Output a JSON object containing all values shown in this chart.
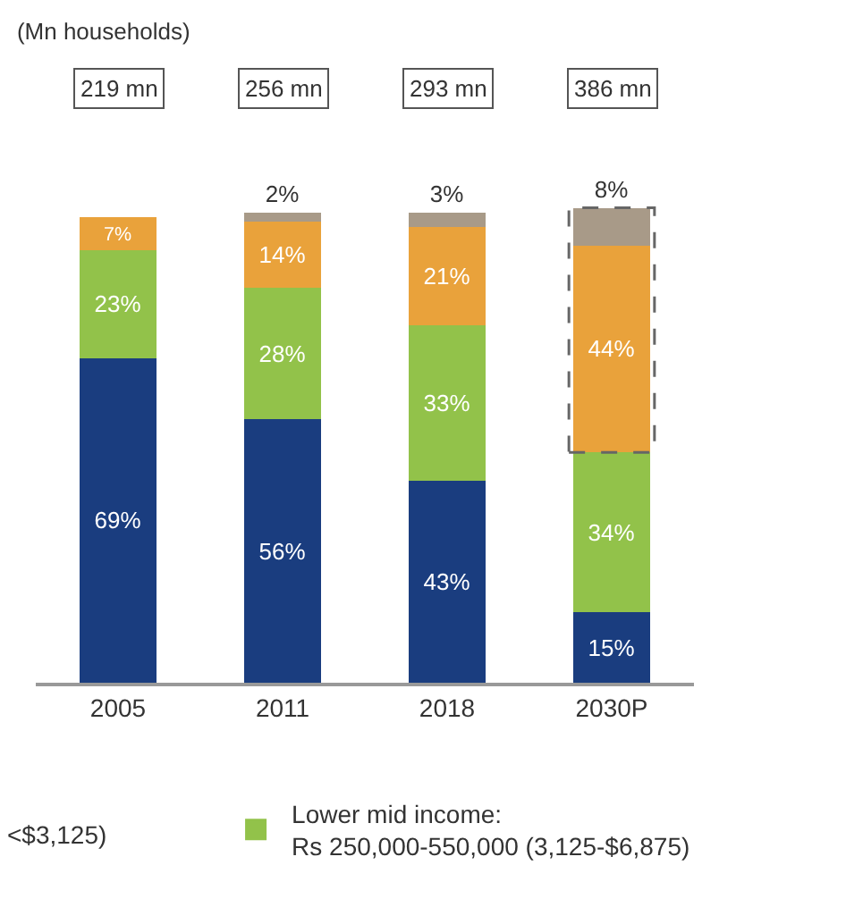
{
  "chart_data": {
    "type": "bar",
    "title": "(Mn households)",
    "stacked": true,
    "categories": [
      "2005",
      "2011",
      "2018",
      "2030P"
    ],
    "series": [
      {
        "color": "#1a3d7f",
        "values": [
          69,
          56,
          43,
          15
        ],
        "value_labels": [
          "69%",
          "56%",
          "43%",
          "15%"
        ]
      },
      {
        "name": "Lower mid income:\nRs 250,000-550,000 (3,125-$6,875)",
        "color": "#92c24a",
        "values": [
          23,
          28,
          33,
          34
        ],
        "value_labels": [
          "23%",
          "28%",
          "33%",
          "34%"
        ]
      },
      {
        "color": "#e9a23b",
        "values": [
          7,
          14,
          21,
          44
        ],
        "value_labels": [
          "7%",
          "14%",
          "21%",
          "44%"
        ]
      },
      {
        "color": "#a89a88",
        "values": [
          null,
          2,
          3,
          8
        ],
        "value_labels": [
          null,
          "2%",
          "3%",
          "8%"
        ]
      }
    ],
    "annotations": [
      "219 mn",
      "256 mn",
      "293 mn",
      "386 mn",
      "<$3,125)"
    ],
    "legend": "bottom"
  }
}
